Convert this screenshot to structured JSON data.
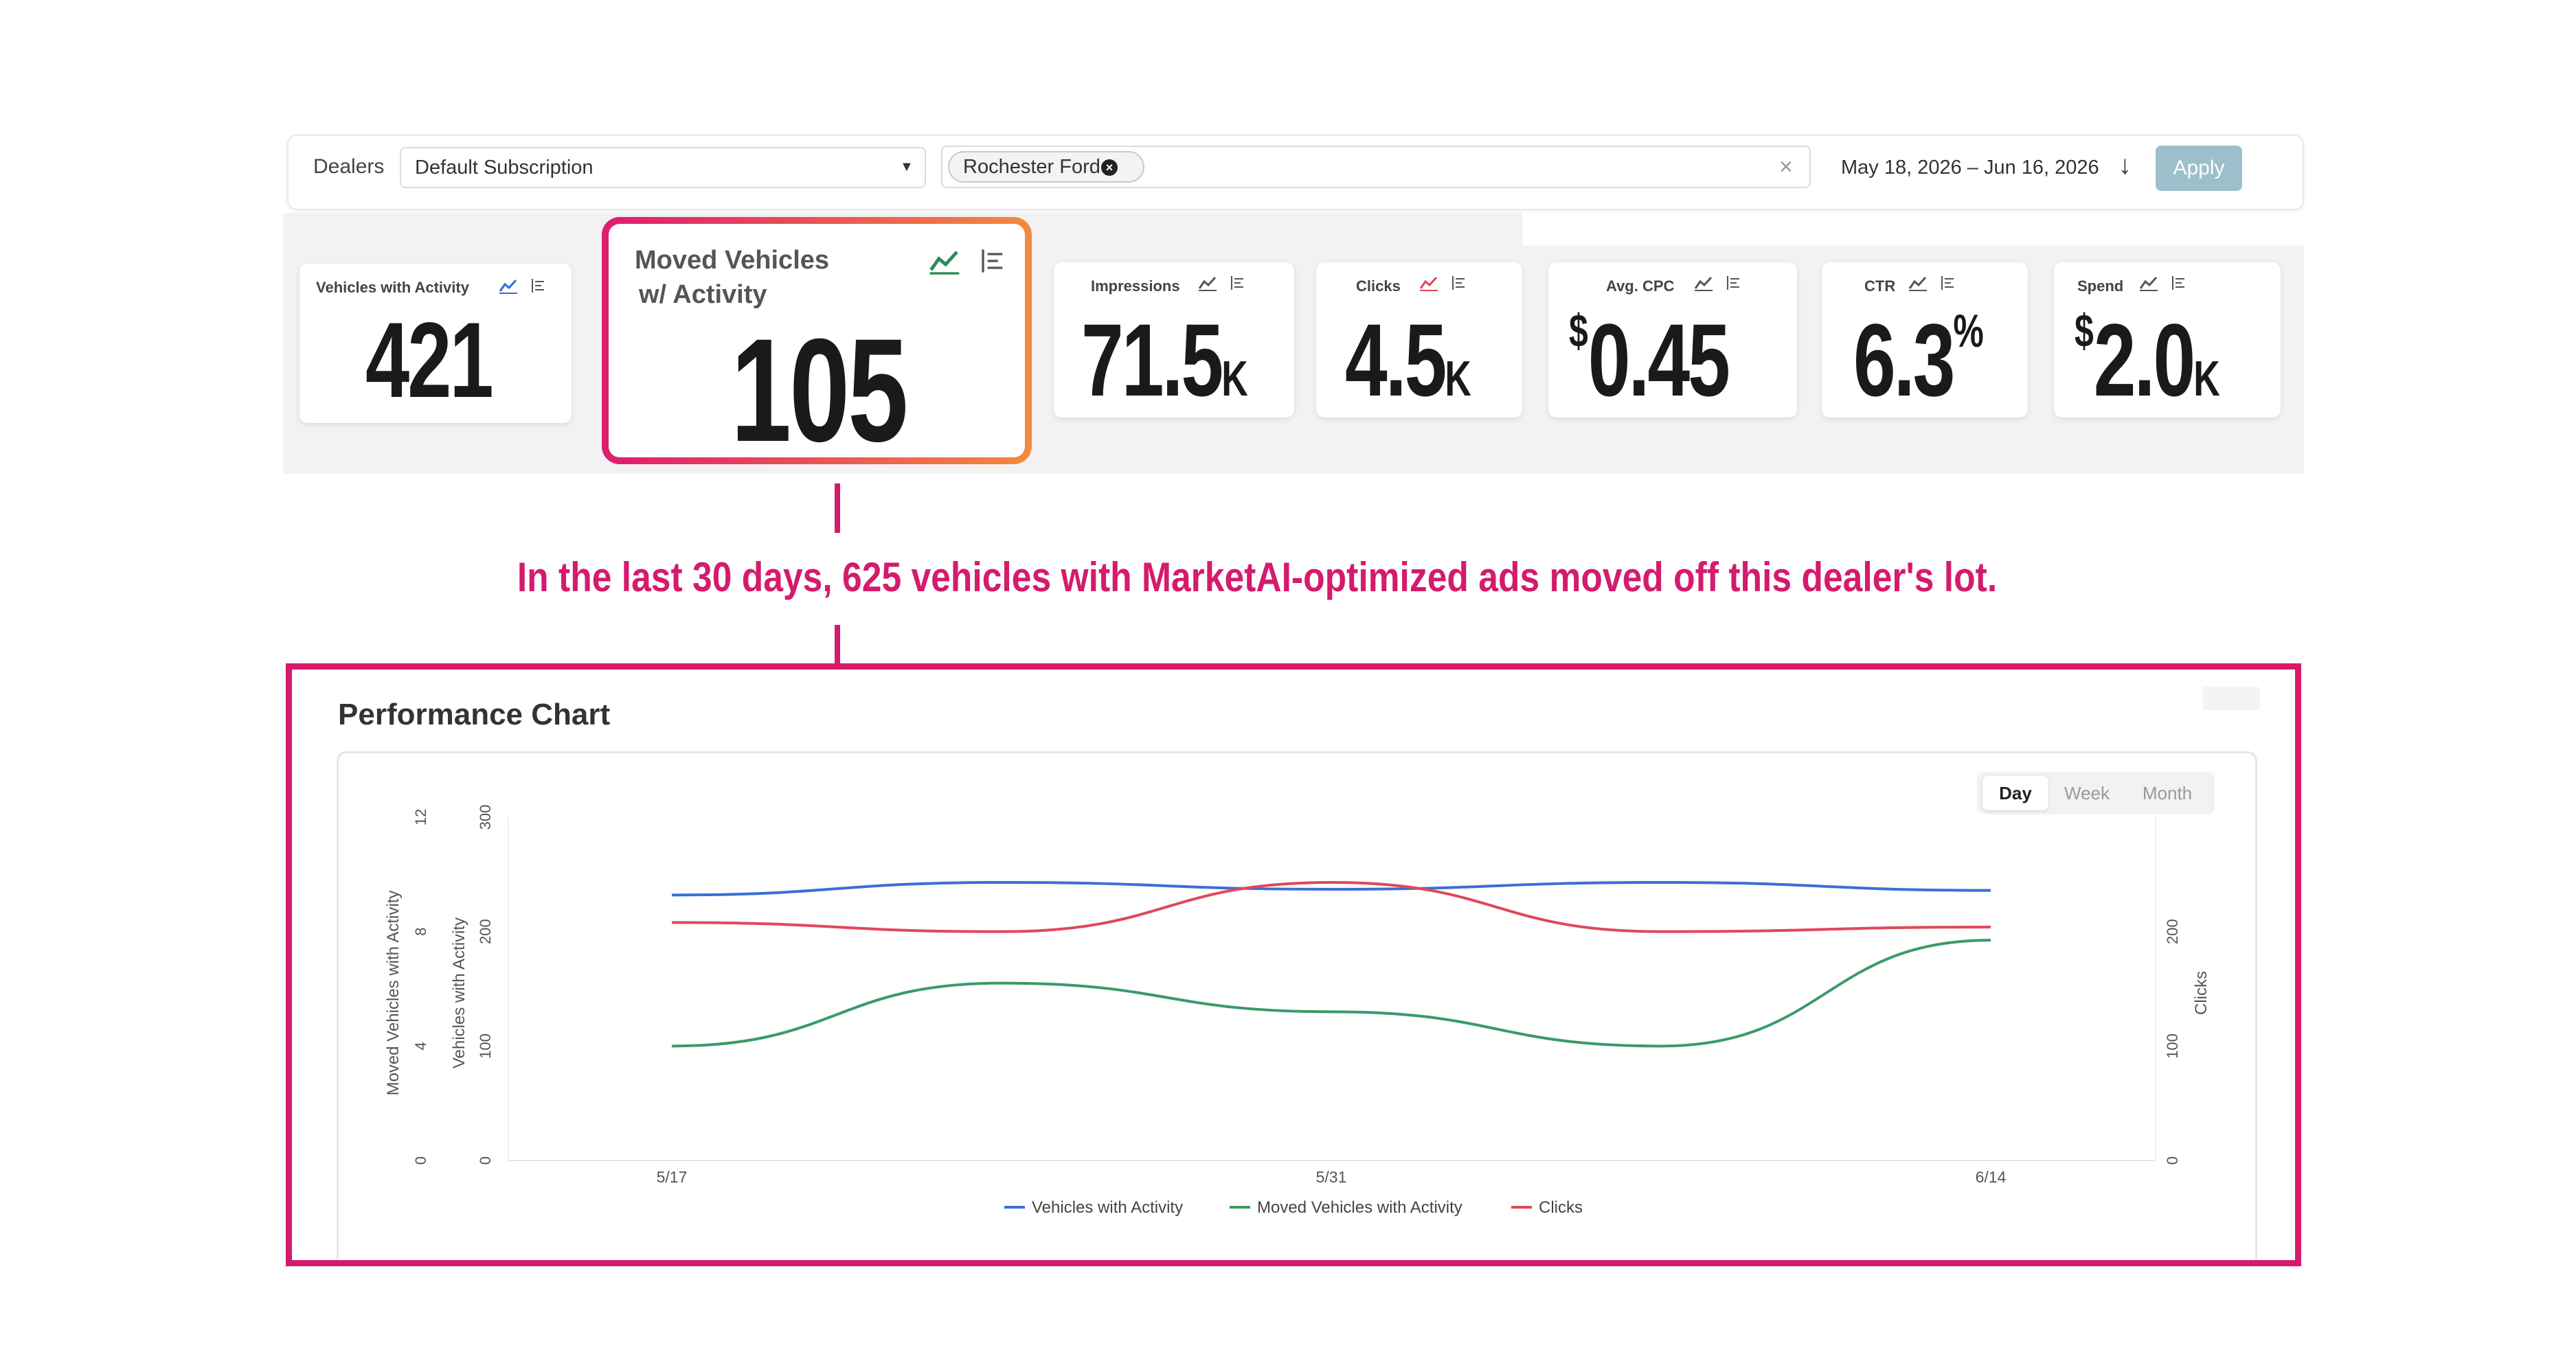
{
  "filters": {
    "dealers_label": "Dealers",
    "subscription": "Default Subscription",
    "dealer_chip": "Rochester Ford",
    "date_range": "May 18, 2026 – Jun 16, 2026",
    "apply_label": "Apply"
  },
  "kpis": {
    "vehicles": {
      "title": "Vehicles with Activity",
      "value": "421"
    },
    "moved": {
      "title_line1": "Moved Vehicles",
      "title_line2": "w/ Activity",
      "value": "105"
    },
    "impressions": {
      "title": "Impressions",
      "value": "71.5",
      "unit": "K"
    },
    "clicks": {
      "title": "Clicks",
      "value": "4.5",
      "unit": "K"
    },
    "cpc": {
      "title": "Avg. CPC",
      "prefix": "$",
      "value": "0.45"
    },
    "ctr": {
      "title": "CTR",
      "value": "6.3",
      "suffix": "%"
    },
    "spend": {
      "title": "Spend",
      "prefix": "$",
      "value": "2.0",
      "unit": "K"
    }
  },
  "callout": "In the last 30 days, 625 vehicles with MarketAI-optimized ads moved off this dealer's lot.",
  "chart": {
    "heading": "Performance Chart",
    "periods": [
      "Day",
      "Week",
      "Month"
    ],
    "active_period": "Day"
  },
  "colors": {
    "vehicles": "#3b6fd4",
    "moved": "#3a9a6a",
    "clicks": "#e0485a",
    "accent": "#d41b6d"
  },
  "chart_data": {
    "type": "line",
    "x": [
      "5/17",
      "5/24",
      "5/31",
      "6/7",
      "6/14"
    ],
    "x_tick_labels": [
      "5/17",
      "5/31",
      "6/14"
    ],
    "axes": {
      "left_outer": {
        "label": "Moved Vehicles with Activity",
        "ticks": [
          "0",
          "4",
          "8",
          "12"
        ],
        "range": [
          0,
          12
        ]
      },
      "left_inner": {
        "label": "Vehicles with Activity",
        "ticks": [
          "0",
          "100",
          "200",
          "300"
        ],
        "range": [
          0,
          300
        ]
      },
      "right": {
        "label": "Clicks",
        "ticks": [
          "0",
          "100",
          "200"
        ],
        "range": [
          0,
          300
        ]
      }
    },
    "series": [
      {
        "name": "Vehicles with Activity",
        "axis": "left_inner",
        "values": [
          232,
          243,
          237,
          243,
          236
        ]
      },
      {
        "name": "Moved Vehicles with Activity",
        "axis": "left_outer",
        "values": [
          4.0,
          6.2,
          5.2,
          4.0,
          7.7
        ]
      },
      {
        "name": "Clicks",
        "axis": "right",
        "values": [
          208,
          200,
          243,
          200,
          204
        ]
      }
    ],
    "legend_position": "bottom"
  }
}
